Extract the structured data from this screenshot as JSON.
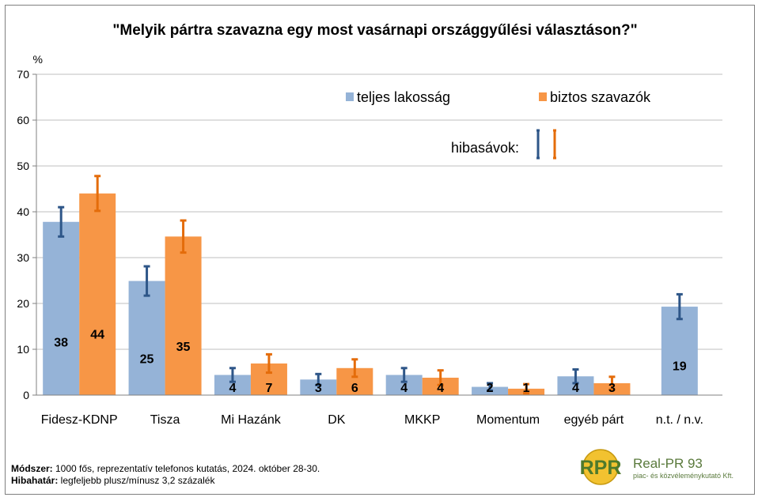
{
  "chart_data": {
    "type": "bar",
    "title": "\"Melyik pártra szavazna egy most vasárnapi országgyűlési választáson?\"",
    "yunit": "%",
    "ylim": [
      0,
      70
    ],
    "yticks": [
      0,
      10,
      20,
      30,
      40,
      50,
      60,
      70
    ],
    "grid": true,
    "categories": [
      "Fidesz-KDNP",
      "Tisza",
      "Mi Hazánk",
      "DK",
      "MKKP",
      "Momentum",
      "egyéb párt",
      "n.t. / n.v."
    ],
    "series": [
      {
        "name": "teljes lakosság",
        "color": "#95b3d7",
        "error_color": "#2e5688",
        "values": [
          37.8,
          24.9,
          4.4,
          3.4,
          4.4,
          1.8,
          4.1,
          19.3
        ],
        "labels": [
          "38",
          "25",
          "4",
          "3",
          "4",
          "2",
          "4",
          "19"
        ],
        "errors": [
          3.2,
          3.2,
          1.5,
          1.2,
          1.5,
          0.8,
          1.5,
          2.7
        ]
      },
      {
        "name": "biztos szavazók",
        "color": "#f79646",
        "error_color": "#e46c0a",
        "values": [
          44.0,
          34.6,
          6.9,
          5.9,
          3.8,
          1.4,
          2.6,
          null
        ],
        "labels": [
          "44",
          "35",
          "7",
          "6",
          "4",
          "1",
          "3",
          ""
        ],
        "errors": [
          3.8,
          3.5,
          2.0,
          1.9,
          1.6,
          1.0,
          1.4,
          null
        ]
      }
    ],
    "legend_position": "top-right",
    "errorbar_legend_label": "hibasávok:"
  },
  "footer": {
    "method_label": "Módszer:",
    "method_text": " 1000 fős, reprezentatív telefonos kutatás, 2024. október 28-30.",
    "margin_label": "Hibahatár:",
    "margin_text": " legfeljebb plusz/mínusz 3,2 százalék"
  },
  "logo": {
    "mark": "RPR",
    "name": "Real-PR 93",
    "tagline": "piac- és közvéleménykutató Kft.",
    "icon": "rpr-globe-logo"
  }
}
